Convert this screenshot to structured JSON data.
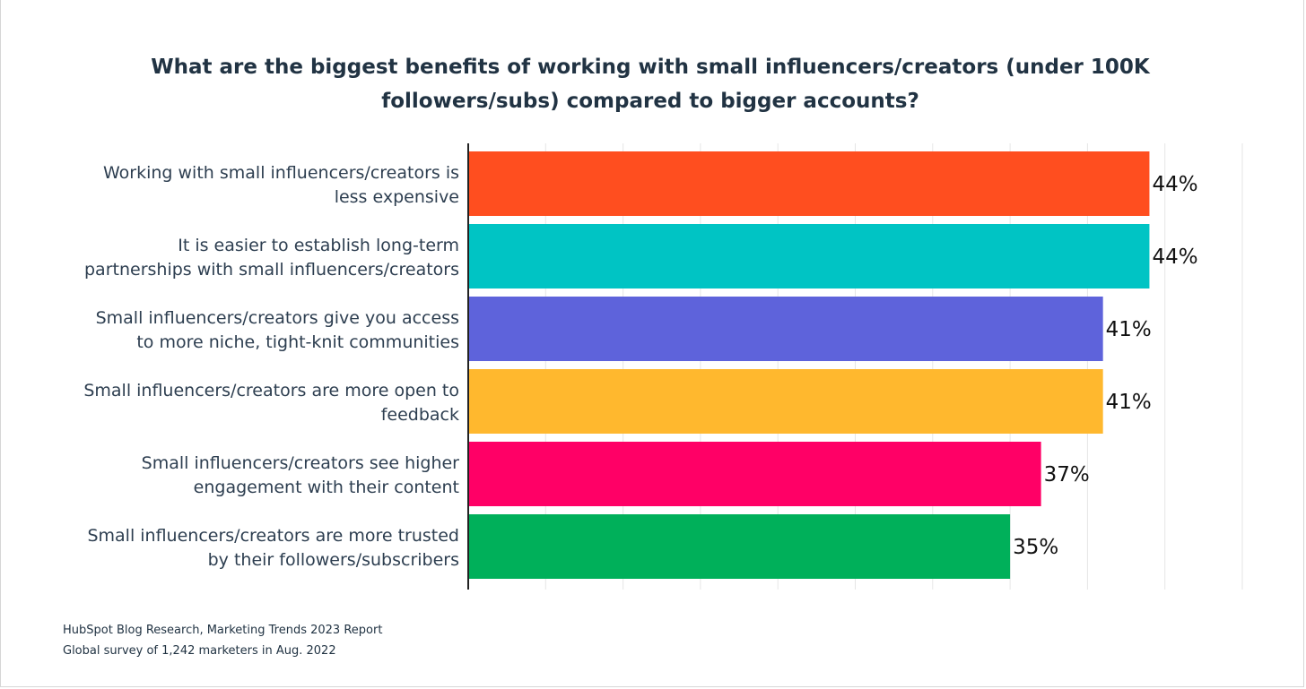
{
  "chart_data": {
    "type": "bar",
    "orientation": "horizontal",
    "title": "What are the biggest benefits of working with small influencers/creators (under 100K followers/subs) compared to bigger accounts?",
    "categories": [
      [
        "Working with small influencers/creators is",
        "less expensive"
      ],
      [
        "It is easier to establish long-term",
        "partnerships with small influencers/creators"
      ],
      [
        "Small influencers/creators give you access",
        "to more niche, tight-knit communities"
      ],
      [
        "Small influencers/creators are more open to",
        "feedback"
      ],
      [
        "Small influencers/creators see higher",
        "engagement with their content"
      ],
      [
        "Small influencers/creators are more trusted",
        "by their followers/subscribers"
      ]
    ],
    "values": [
      44,
      44,
      41,
      41,
      37,
      35
    ],
    "value_labels": [
      "44%",
      "44%",
      "41%",
      "41%",
      "37%",
      "35%"
    ],
    "colors": [
      "#ff4e1f",
      "#00c4c4",
      "#5e63db",
      "#ffb82e",
      "#ff0066",
      "#00b05a"
    ],
    "xlim": [
      0,
      50
    ],
    "grid": true,
    "xlabel": "",
    "ylabel": ""
  },
  "footer": {
    "source_line1": "HubSpot Blog Research, Marketing Trends 2023 Report",
    "source_line2": "Global survey of 1,242 marketers in Aug. 2022"
  }
}
